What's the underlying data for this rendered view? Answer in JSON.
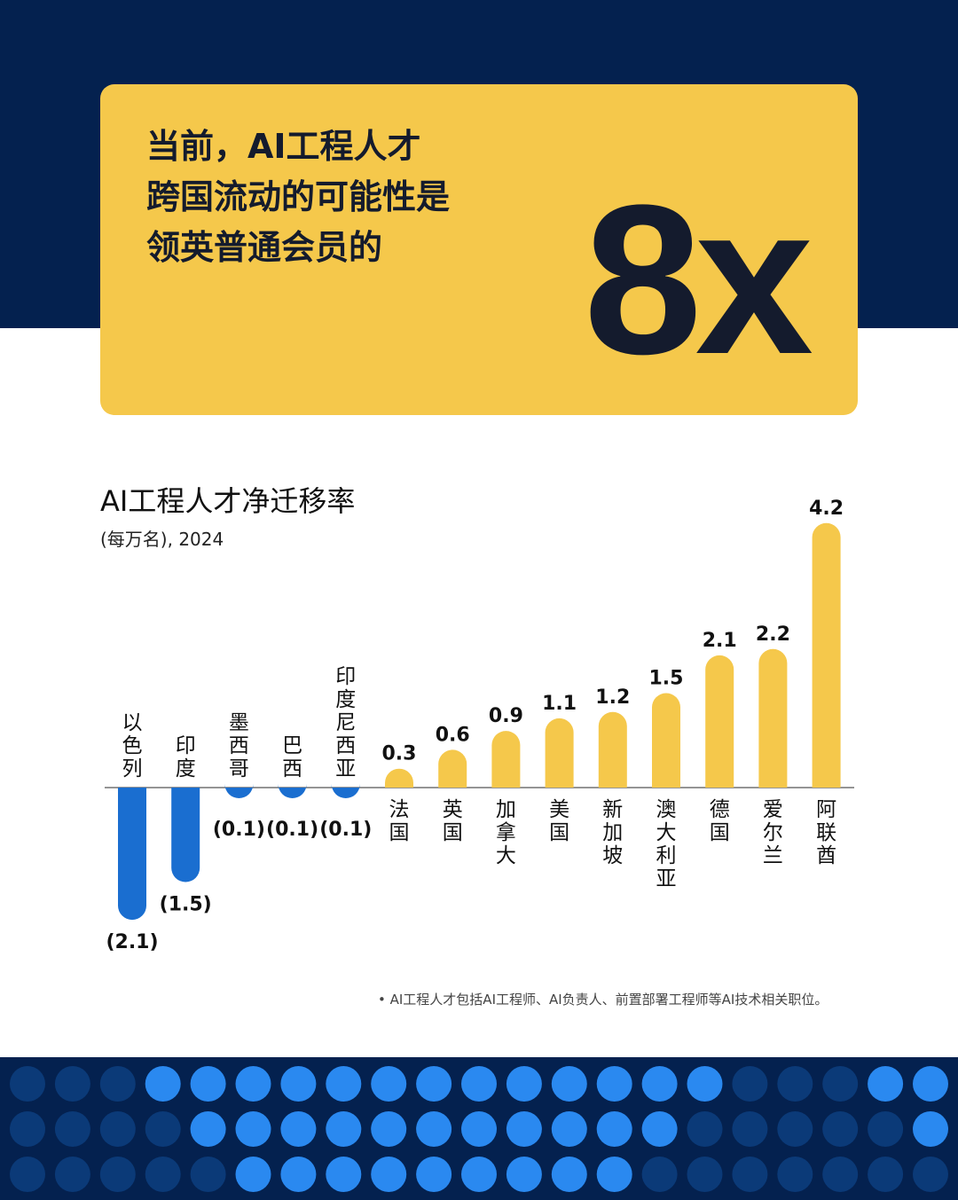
{
  "headline": [
    "当前，AI工程人才",
    "跨国流动的可能性是",
    "领英普通会员的"
  ],
  "multiplier": "8x",
  "chart_data": {
    "type": "bar",
    "title": "AI工程人才净迁移率",
    "subtitle": "(每万名), 2024",
    "categories": [
      "以色列",
      "印度",
      "墨西哥",
      "巴西",
      "印度尼西亚",
      "法国",
      "英国",
      "加拿大",
      "美国",
      "新加坡",
      "澳大利亚",
      "德国",
      "爱尔兰",
      "阿联酋"
    ],
    "values": [
      -2.1,
      -1.5,
      -0.1,
      -0.1,
      -0.1,
      0.3,
      0.6,
      0.9,
      1.1,
      1.2,
      1.5,
      2.1,
      2.2,
      4.2
    ],
    "value_labels": [
      "(2.1)",
      "(1.5)",
      "(0.1)",
      "(0.1)",
      "(0.1)",
      "0.3",
      "0.6",
      "0.9",
      "1.1",
      "1.2",
      "1.5",
      "2.1",
      "2.2",
      "4.2"
    ],
    "colors": {
      "positive": "#f5c84b",
      "negative": "#1a6ed0"
    },
    "xlabel": "",
    "ylabel": "",
    "ylim": [
      -2.1,
      4.2
    ]
  },
  "footnote": "• AI工程人才包括AI工程师、AI负责人、前置部署工程师等AI技术相关职位。",
  "colors": {
    "navy": "#04214f",
    "yellow": "#f5c84b",
    "dot_bright": "#2a89f0",
    "dot_dim": "#0b3a78"
  }
}
